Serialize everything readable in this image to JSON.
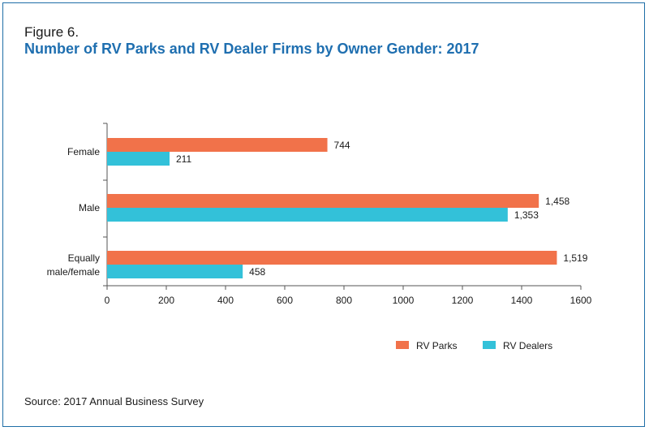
{
  "figure": {
    "label": "Figure 6.",
    "title": "Number of RV Parks and RV Dealer Firms by Owner Gender: 2017",
    "source": "Source: 2017 Annual Business Survey"
  },
  "colors": {
    "rv_parks": "#f1724a",
    "rv_dealers": "#33c1d9",
    "accent": "#1f6fb0"
  },
  "chart_data": {
    "type": "bar",
    "orientation": "horizontal",
    "categories": [
      [
        "Female"
      ],
      [
        "Male"
      ],
      [
        "Equally",
        "male/female"
      ]
    ],
    "series": [
      {
        "name": "RV Parks",
        "values": [
          744,
          1458,
          1519
        ],
        "labels": [
          "744",
          "1,458",
          "1,519"
        ]
      },
      {
        "name": "RV Dealers",
        "values": [
          211,
          1353,
          458
        ],
        "labels": [
          "211",
          "1,353",
          "458"
        ]
      }
    ],
    "xlim": [
      0,
      1600
    ],
    "xticks": [
      0,
      200,
      400,
      600,
      800,
      1000,
      1200,
      1400,
      1600
    ],
    "legend_position": "bottom-right",
    "grid": false
  }
}
